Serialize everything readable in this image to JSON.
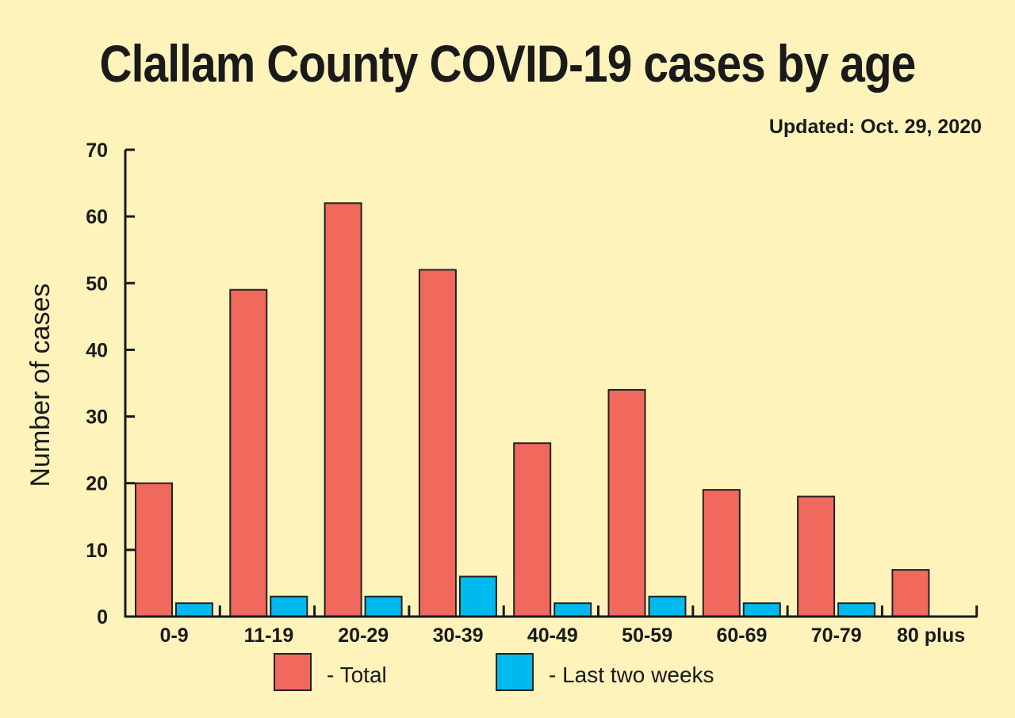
{
  "chart_data": {
    "type": "bar",
    "title": "Clallam County COVID-19 cases by age",
    "subtitle": "Updated: Oct. 29, 2020",
    "xlabel": "",
    "ylabel": "Number of cases",
    "ylim": [
      0,
      70
    ],
    "yticks": [
      0,
      10,
      20,
      30,
      40,
      50,
      60,
      70
    ],
    "grid": false,
    "categories": [
      "0-9",
      "11-19",
      "20-29",
      "30-39",
      "40-49",
      "50-59",
      "60-69",
      "70-79",
      "80 plus"
    ],
    "series": [
      {
        "name": "- Total",
        "color": "#f0695c",
        "values": [
          20,
          49,
          62,
          52,
          26,
          34,
          19,
          18,
          7
        ]
      },
      {
        "name": "- Last two weeks",
        "color": "#00b9ee",
        "values": [
          2,
          3,
          3,
          6,
          2,
          3,
          2,
          2,
          0
        ]
      }
    ],
    "legend_position": "bottom"
  },
  "background": "#fdf3bb"
}
